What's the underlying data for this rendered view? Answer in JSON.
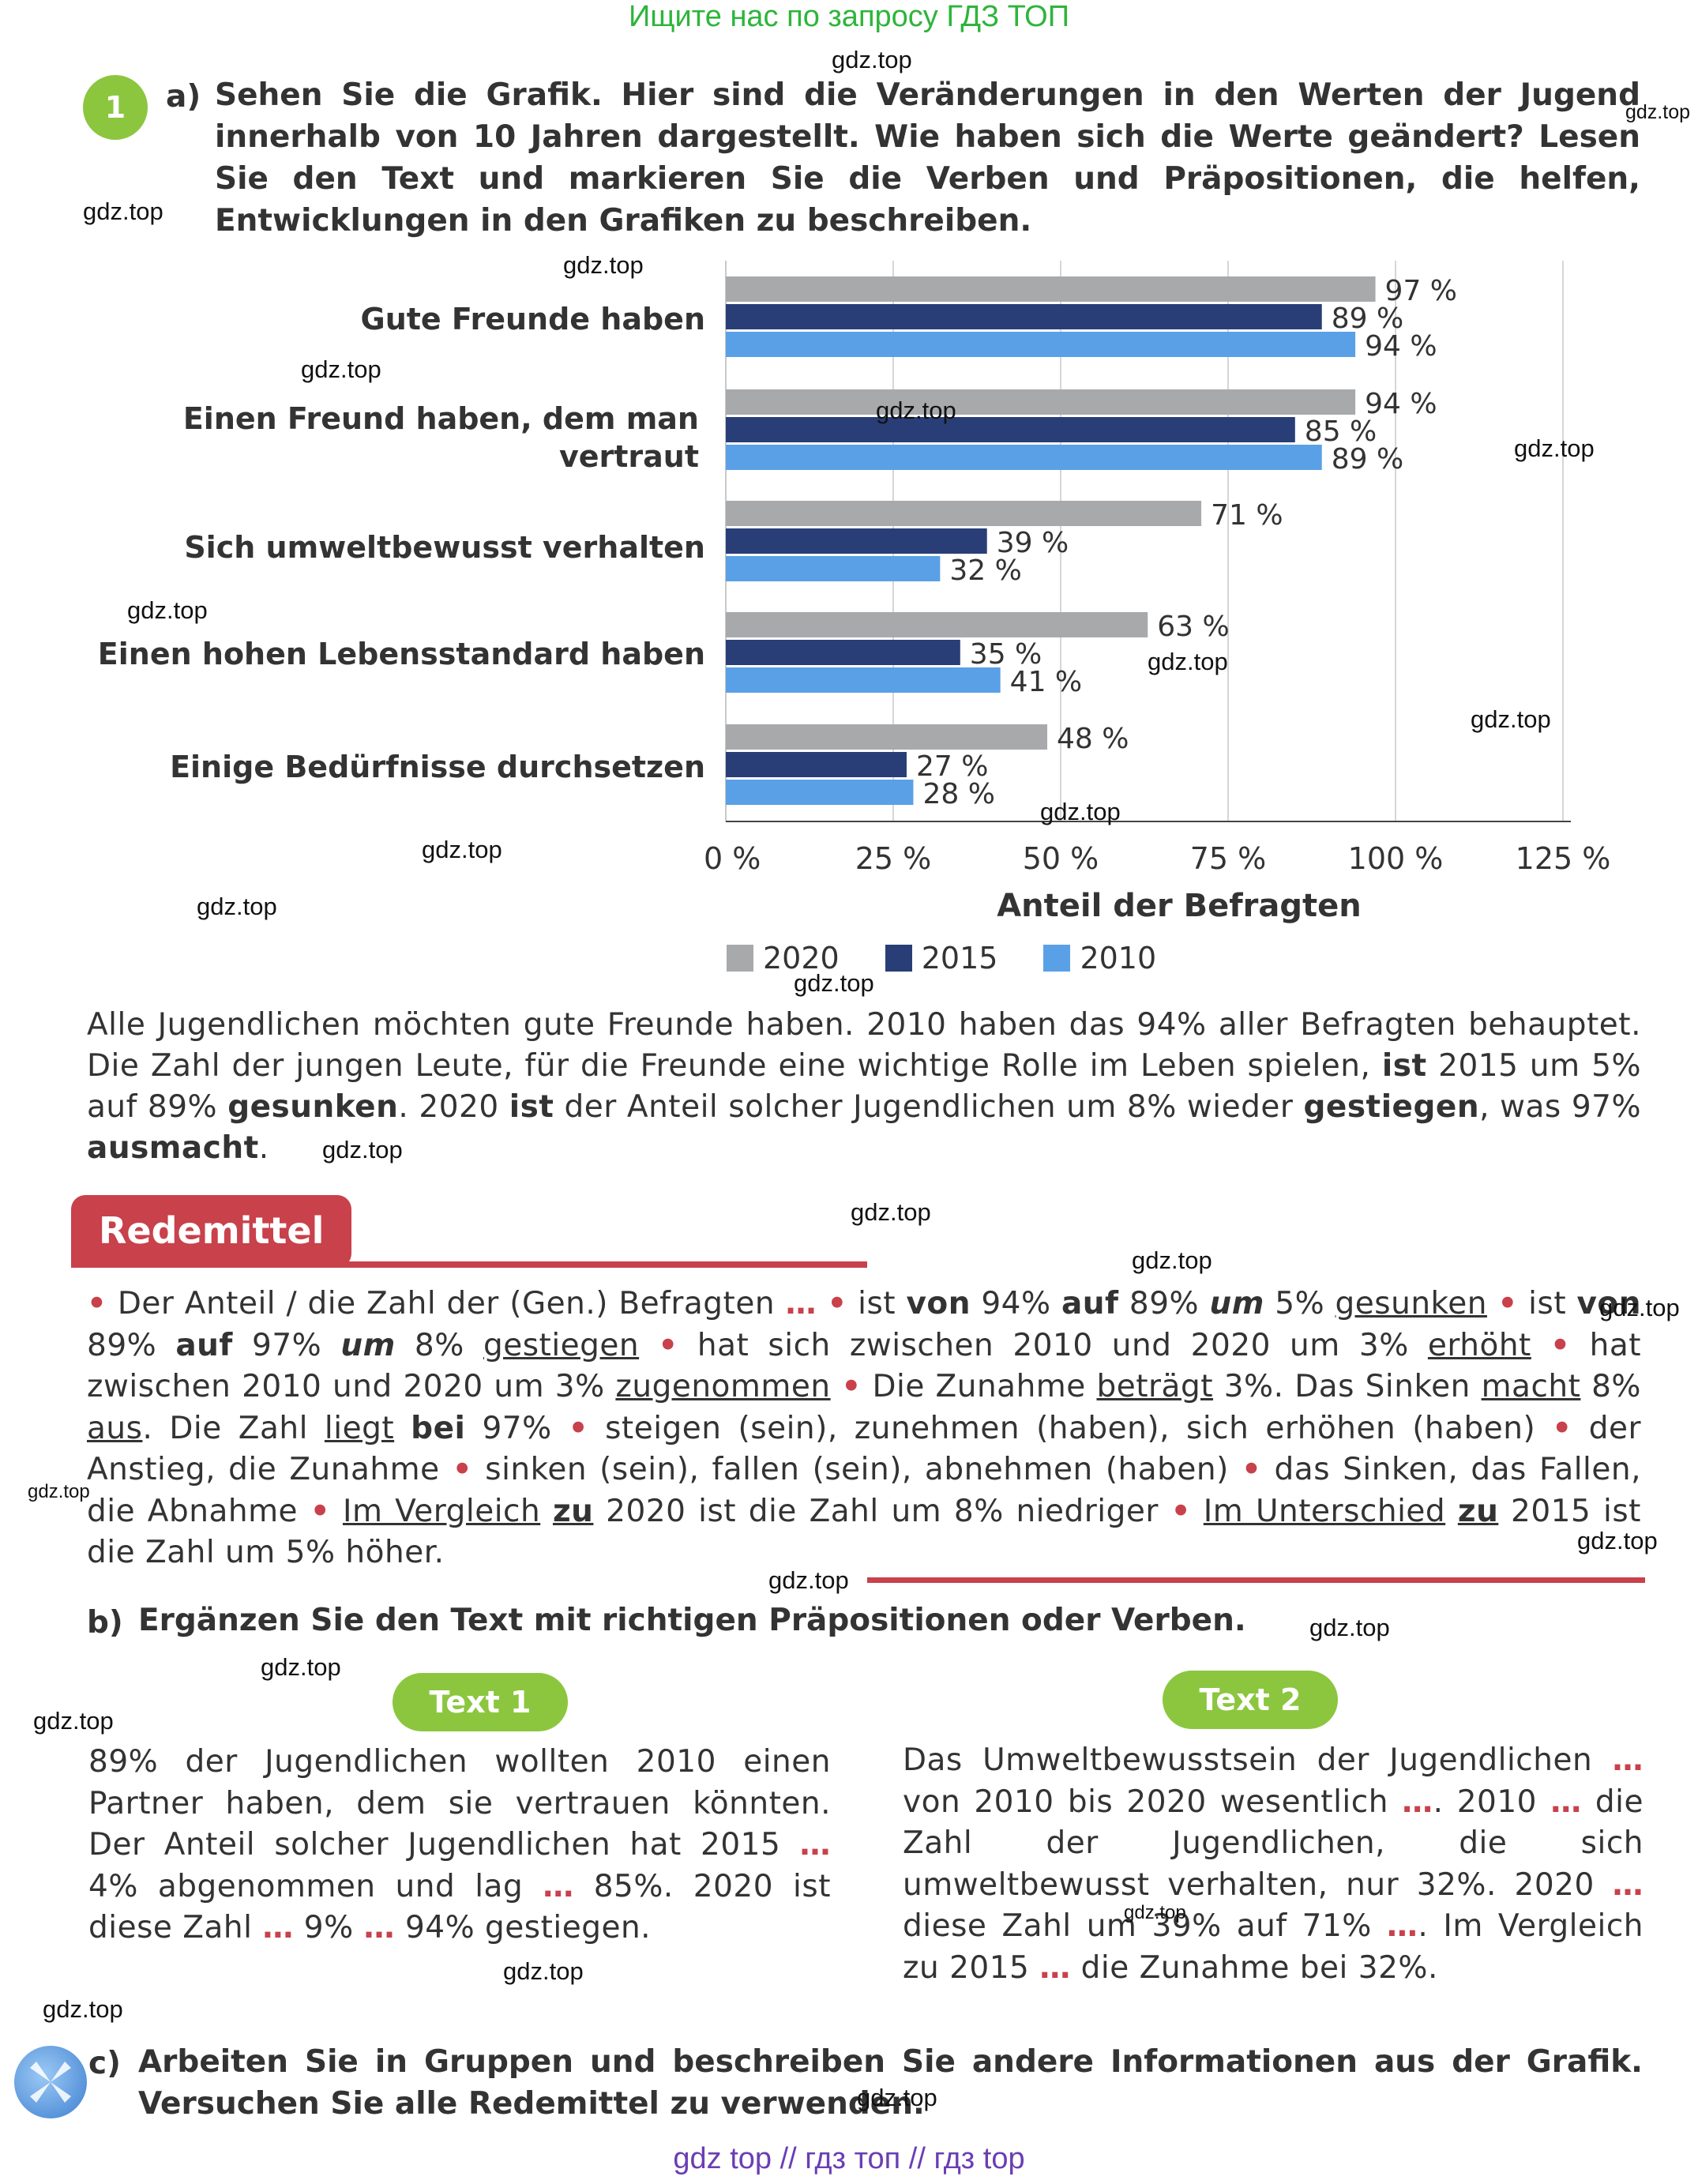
{
  "header": {
    "banner": "Ищите нас по запросу ГДЗ ТОП"
  },
  "task": {
    "number": "1",
    "a_label": "a)",
    "a_text": "Sehen Sie die Grafik. Hier sind die Veränderungen in den Werten der Jugend innerhalb von 10 Jahren dargestellt. Wie haben sich die Werte geändert? Lesen Sie den Text und markieren Sie die Verben und Präpositionen, die helfen, Entwicklungen in den Grafiken zu beschreiben.",
    "b_label": "b)",
    "b_text": "Ergänzen Sie den Text mit richtigen Präpositionen oder Verben.",
    "c_label": "c)",
    "c_text": "Arbeiten Sie in Gruppen und beschreiben Sie andere Informationen aus der Grafik. Versuchen Sie alle Redemittel zu verwenden."
  },
  "chart_data": {
    "type": "bar",
    "orientation": "horizontal",
    "categories": [
      "Gute Freunde haben",
      "Einen Freund haben, dem man vertraut",
      "Sich umweltbewusst verhalten",
      "Einen hohen Lebensstandard haben",
      "Einige Bedürfnisse durchsetzen"
    ],
    "series": [
      {
        "name": "2020",
        "color": "#a8a9ab",
        "values": [
          97,
          94,
          71,
          63,
          48
        ]
      },
      {
        "name": "2015",
        "color": "#293e76",
        "values": [
          89,
          85,
          39,
          35,
          27
        ]
      },
      {
        "name": "2010",
        "color": "#5aa0e6",
        "values": [
          94,
          89,
          32,
          41,
          28
        ]
      }
    ],
    "xlabel": "Anteil der Befragten",
    "xlim": [
      0,
      125
    ],
    "xticks": [
      "0 %",
      "25 %",
      "50 %",
      "75 %",
      "100 %",
      "125 %"
    ],
    "grid": true,
    "legend": "bottom",
    "value_suffix": " %"
  },
  "paragraph_a": "Alle Jugendlichen möchten gute Freunde haben. 2010 haben das 94% aller Befragten behauptet. Die Zahl der jungen Leute, für die Freunde eine wichtige Rolle im Leben spielen, {b:ist} 2015 um 5% auf 89% {b:gesunken}. 2020 {b:ist} der Anteil solcher Jugendlichen um 8% wieder {b:gestiegen}, was 97% {b:ausmacht}.",
  "redemittel": {
    "title": "Redemittel",
    "text": "{dot} Der Anteil / die Zahl der (Gen.) Befragten {ell} {dot} ist {b:von} 94% {b:auf} 89% {bi:um} 5% {u:gesunken} {dot} ist {b:von} 89% {b:auf} 97% {bi:um} 8% {u:gestiegen} {dot} hat sich zwischen 2010 und 2020 um 3% {u:erhöht} {dot} hat zwischen 2010 und 2020 um 3% {u:zugenommen} {dot} Die Zunahme {u:beträgt} 3%. Das Sinken {u:macht} 8% {u:aus}. Die Zahl {u:liegt} {b:bei} 97% {dot} steigen (sein), zunehmen (haben), sich erhöhen (haben) {dot} der Anstieg, die Zunahme {dot} sinken (sein), fallen (sein), abnehmen (haben) {dot} das Sinken, das Fallen, die Abnahme {dot} {u:Im Vergleich} {bu:zu} 2020 ist die Zahl um 8% niedriger {dot} {u:Im Unterschied} {bu:zu} 2015 ist die Zahl um 5% höher."
  },
  "text1": {
    "label": "Text 1",
    "body": "89% der Jugendlichen wollten 2010 einen Partner haben, dem sie vertrauen könnten. Der Anteil solcher Jugendlichen hat 2015 {ell} 4% abgenommen und lag {ell} 85%. 2020 ist diese Zahl {ell} 9% {ell} 94% gestiegen."
  },
  "text2": {
    "label": "Text 2",
    "body": "Das Umweltbewusstsein der Jugendlichen {ell} von 2010 bis 2020 wesentlich {ell}. 2010 {ell} die Zahl der Jugendlichen, die sich umweltbewusst verhalten, nur 32%. 2020 {ell} diese Zahl um 39% auf 71% {ell}. Im Vergleich zu 2015 {ell} die Zunahme bei 32%."
  },
  "watermark": "gdz.top",
  "footer": {
    "links": "gdz top  //  гдз топ  //  гдз top"
  }
}
